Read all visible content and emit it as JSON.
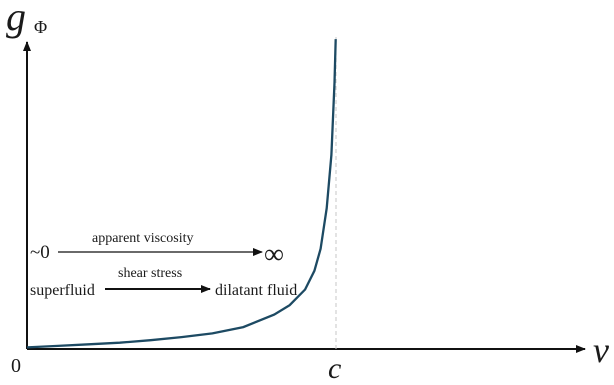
{
  "chart_data": {
    "type": "line",
    "title": "",
    "xlabel": "v",
    "ylabel": "g",
    "ylabel_subscript": "Φ",
    "origin_label": "0",
    "asymptote_label": "c",
    "asymptote_x": 1,
    "xlim": [
      0,
      1.85
    ],
    "ylim": [
      0,
      1
    ],
    "grid": false,
    "series": [
      {
        "curve_color": "#1d4a63",
        "x": [
          0,
          0.1,
          0.2,
          0.3,
          0.4,
          0.5,
          0.6,
          0.7,
          0.8,
          0.85,
          0.9,
          0.93,
          0.95,
          0.97,
          0.985,
          0.995,
          0.999
        ],
        "y": [
          0.005,
          0.01,
          0.015,
          0.02,
          0.028,
          0.038,
          0.05,
          0.07,
          0.11,
          0.14,
          0.19,
          0.25,
          0.32,
          0.45,
          0.62,
          0.85,
          0.99
        ]
      }
    ],
    "annotations": {
      "row1_left": "~0",
      "row1_label": "apparent  viscosity",
      "row1_right": "∞",
      "row2_left": "superfluid",
      "row2_label": "shear stress",
      "row2_right": "dilatant fluid"
    },
    "colors": {
      "axis": "#111111",
      "asymptote": "#c7c7c7",
      "curve": "#1d4a63"
    }
  }
}
